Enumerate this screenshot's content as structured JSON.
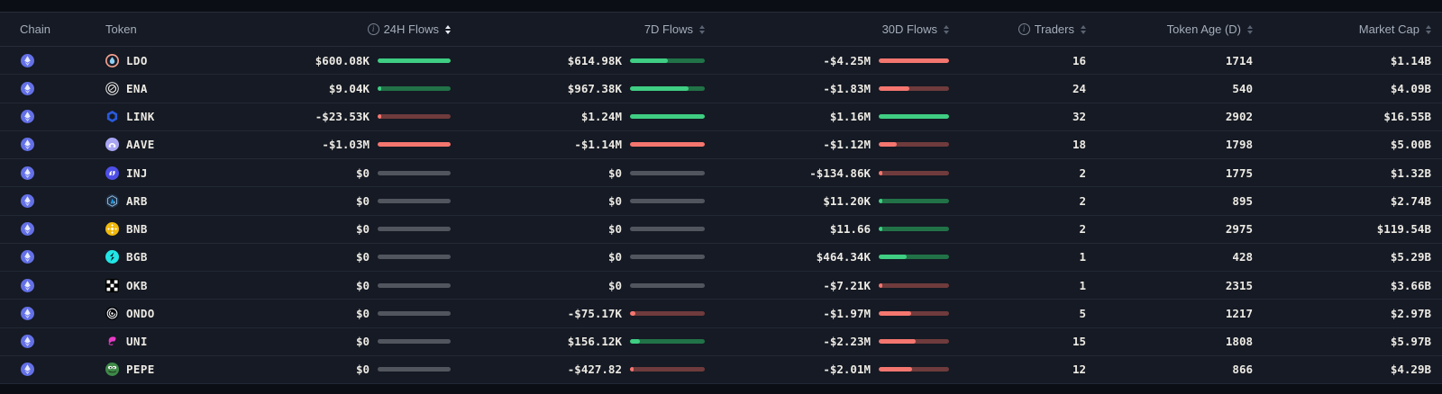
{
  "columns": {
    "chain": {
      "label": "Chain"
    },
    "token": {
      "label": "Token"
    },
    "flows_24h": {
      "label": "24H Flows",
      "has_info": true,
      "sort_active": true
    },
    "flows_7d": {
      "label": "7D Flows",
      "has_info": false,
      "sort_active": false
    },
    "flows_30d": {
      "label": "30D Flows",
      "has_info": false,
      "sort_active": false
    },
    "traders": {
      "label": "Traders",
      "has_info": true,
      "sort_active": false
    },
    "token_age": {
      "label": "Token Age (D)",
      "has_info": false,
      "sort_active": false
    },
    "market_cap": {
      "label": "Market Cap",
      "has_info": false,
      "sort_active": false
    }
  },
  "colors": {
    "flow_positive": "#3FCE83",
    "flow_positive_track": "#217247",
    "flow_negative": "#F4766F",
    "flow_negative_track": "#6F3B3C",
    "flow_zero_track": "#51565E",
    "chain_ethereum": "#6470E6",
    "row_background": "#151A24",
    "page_background": "#0B0E14"
  },
  "rows": [
    {
      "chain": "ethereum",
      "symbol": "LDO",
      "icon_color": "#F2A08E",
      "flows_24h": {
        "display": "$600.08K",
        "raw": 600080
      },
      "flows_7d": {
        "display": "$614.98K",
        "raw": 614980
      },
      "flows_30d": {
        "display": "-$4.25M",
        "raw": -4250000
      },
      "traders": "16",
      "token_age": "1714",
      "market_cap": "$1.14B"
    },
    {
      "chain": "ethereum",
      "symbol": "ENA",
      "icon_color": "#11131B",
      "flows_24h": {
        "display": "$9.04K",
        "raw": 9040
      },
      "flows_7d": {
        "display": "$967.38K",
        "raw": 967380
      },
      "flows_30d": {
        "display": "-$1.83M",
        "raw": -1830000
      },
      "traders": "24",
      "token_age": "540",
      "market_cap": "$4.09B"
    },
    {
      "chain": "ethereum",
      "symbol": "LINK",
      "icon_color": "#2A5ADA",
      "flows_24h": {
        "display": "-$23.53K",
        "raw": -23530
      },
      "flows_7d": {
        "display": "$1.24M",
        "raw": 1240000
      },
      "flows_30d": {
        "display": "$1.16M",
        "raw": 1160000
      },
      "traders": "32",
      "token_age": "2902",
      "market_cap": "$16.55B"
    },
    {
      "chain": "ethereum",
      "symbol": "AAVE",
      "icon_color": "#A8A5F3",
      "flows_24h": {
        "display": "-$1.03M",
        "raw": -1030000
      },
      "flows_7d": {
        "display": "-$1.14M",
        "raw": -1140000
      },
      "flows_30d": {
        "display": "-$1.12M",
        "raw": -1120000
      },
      "traders": "18",
      "token_age": "1798",
      "market_cap": "$5.00B"
    },
    {
      "chain": "ethereum",
      "symbol": "INJ",
      "icon_color": "#4F4FE8",
      "flows_24h": {
        "display": "$0",
        "raw": 0
      },
      "flows_7d": {
        "display": "$0",
        "raw": 0
      },
      "flows_30d": {
        "display": "-$134.86K",
        "raw": -134860
      },
      "traders": "2",
      "token_age": "1775",
      "market_cap": "$1.32B"
    },
    {
      "chain": "ethereum",
      "symbol": "ARB",
      "icon_color": "#213147",
      "flows_24h": {
        "display": "$0",
        "raw": 0
      },
      "flows_7d": {
        "display": "$0",
        "raw": 0
      },
      "flows_30d": {
        "display": "$11.20K",
        "raw": 11200
      },
      "traders": "2",
      "token_age": "895",
      "market_cap": "$2.74B"
    },
    {
      "chain": "ethereum",
      "symbol": "BNB",
      "icon_color": "#F0B90B",
      "flows_24h": {
        "display": "$0",
        "raw": 0
      },
      "flows_7d": {
        "display": "$0",
        "raw": 0
      },
      "flows_30d": {
        "display": "$11.66",
        "raw": 11.66
      },
      "traders": "2",
      "token_age": "2975",
      "market_cap": "$119.54B"
    },
    {
      "chain": "ethereum",
      "symbol": "BGB",
      "icon_color": "#22E5E5",
      "flows_24h": {
        "display": "$0",
        "raw": 0
      },
      "flows_7d": {
        "display": "$0",
        "raw": 0
      },
      "flows_30d": {
        "display": "$464.34K",
        "raw": 464340
      },
      "traders": "1",
      "token_age": "428",
      "market_cap": "$5.29B"
    },
    {
      "chain": "ethereum",
      "symbol": "OKB",
      "icon_color": "#000000",
      "flows_24h": {
        "display": "$0",
        "raw": 0
      },
      "flows_7d": {
        "display": "$0",
        "raw": 0
      },
      "flows_30d": {
        "display": "-$7.21K",
        "raw": -7210
      },
      "traders": "1",
      "token_age": "2315",
      "market_cap": "$3.66B"
    },
    {
      "chain": "ethereum",
      "symbol": "ONDO",
      "icon_color": "#05070C",
      "flows_24h": {
        "display": "$0",
        "raw": 0
      },
      "flows_7d": {
        "display": "-$75.17K",
        "raw": -75170
      },
      "flows_30d": {
        "display": "-$1.97M",
        "raw": -1970000
      },
      "traders": "5",
      "token_age": "1217",
      "market_cap": "$2.97B"
    },
    {
      "chain": "ethereum",
      "symbol": "UNI",
      "icon_color": "#E93BC7",
      "flows_24h": {
        "display": "$0",
        "raw": 0
      },
      "flows_7d": {
        "display": "$156.12K",
        "raw": 156120
      },
      "flows_30d": {
        "display": "-$2.23M",
        "raw": -2230000
      },
      "traders": "15",
      "token_age": "1808",
      "market_cap": "$5.97B"
    },
    {
      "chain": "ethereum",
      "symbol": "PEPE",
      "icon_color": "#3E8948",
      "flows_24h": {
        "display": "$0",
        "raw": 0
      },
      "flows_7d": {
        "display": "-$427.82",
        "raw": -427.82
      },
      "flows_30d": {
        "display": "-$2.01M",
        "raw": -2010000
      },
      "traders": "12",
      "token_age": "866",
      "market_cap": "$4.29B"
    }
  ]
}
